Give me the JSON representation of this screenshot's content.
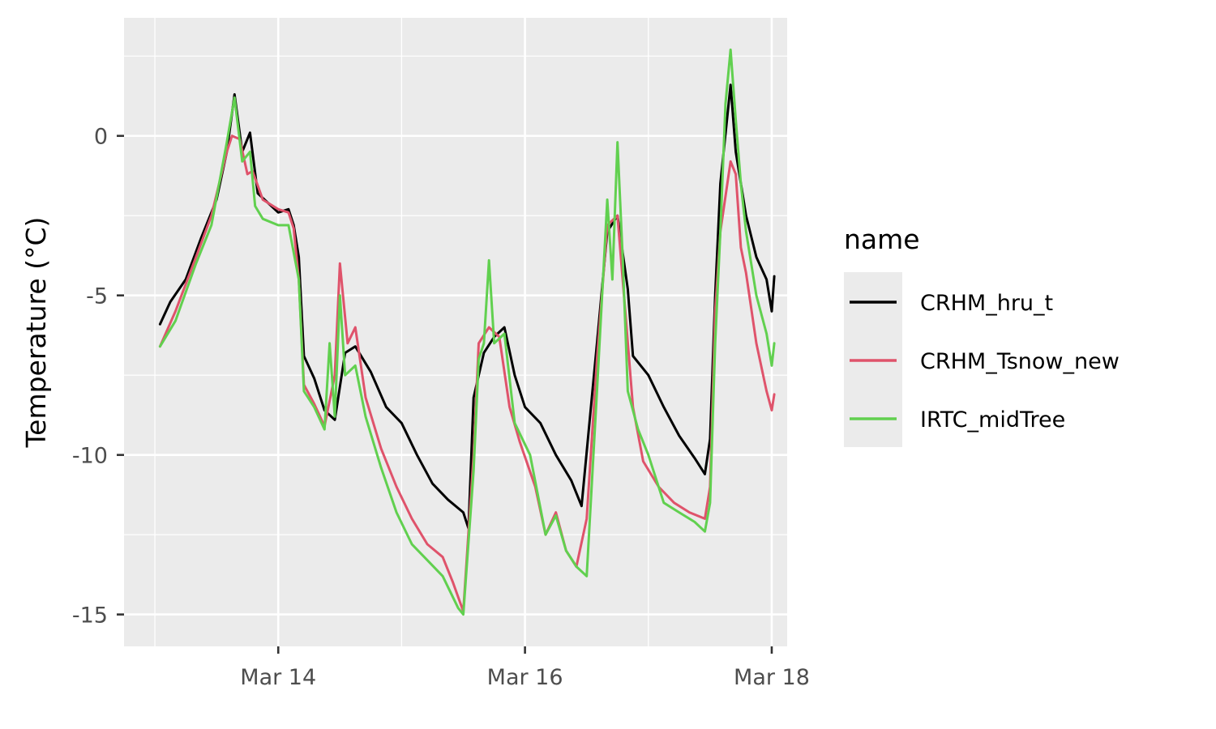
{
  "chart_data": {
    "type": "line",
    "title": "",
    "xlabel": "",
    "ylabel": "Temperature (°C)",
    "x_axis": {
      "type": "time",
      "range": [
        "2023-03-12 18:00",
        "2023-03-18 03:00"
      ],
      "ticks": [
        {
          "value": "2023-03-14 00:00",
          "label": "Mar 14"
        },
        {
          "value": "2023-03-16 00:00",
          "label": "Mar 16"
        },
        {
          "value": "2023-03-18 00:00",
          "label": "Mar 18"
        }
      ],
      "minor_ticks": [
        "2023-03-13 00:00",
        "2023-03-15 00:00",
        "2023-03-17 00:00"
      ]
    },
    "y_axis": {
      "range": [
        -16,
        3.7
      ],
      "ticks": [
        0,
        -5,
        -10,
        -15
      ],
      "tick_labels": [
        "0",
        "-5",
        "-10",
        "-15"
      ],
      "minor_ticks": [
        2.5,
        -2.5,
        -7.5,
        -12.5
      ]
    },
    "grid": true,
    "background": "#ebebeb",
    "legend": {
      "title": "name",
      "position": "right"
    },
    "series": [
      {
        "name": "CRHM_hru_t",
        "color": "#000000",
        "points": [
          [
            "2023-03-13 01:00",
            -5.9
          ],
          [
            "2023-03-13 03:00",
            -5.2
          ],
          [
            "2023-03-13 06:00",
            -4.5
          ],
          [
            "2023-03-13 09:00",
            -3.2
          ],
          [
            "2023-03-13 12:00",
            -2.0
          ],
          [
            "2023-03-13 14:00",
            -0.5
          ],
          [
            "2023-03-13 15:30",
            1.3
          ],
          [
            "2023-03-13 17:00",
            -0.5
          ],
          [
            "2023-03-13 18:30",
            0.1
          ],
          [
            "2023-03-13 20:00",
            -1.8
          ],
          [
            "2023-03-13 22:00",
            -2.1
          ],
          [
            "2023-03-14 00:00",
            -2.4
          ],
          [
            "2023-03-14 02:00",
            -2.3
          ],
          [
            "2023-03-14 03:00",
            -2.8
          ],
          [
            "2023-03-14 04:00",
            -3.8
          ],
          [
            "2023-03-14 05:00",
            -6.9
          ],
          [
            "2023-03-14 07:00",
            -7.6
          ],
          [
            "2023-03-14 09:00",
            -8.6
          ],
          [
            "2023-03-14 11:00",
            -8.9
          ],
          [
            "2023-03-14 13:00",
            -6.8
          ],
          [
            "2023-03-14 15:00",
            -6.6
          ],
          [
            "2023-03-14 18:00",
            -7.4
          ],
          [
            "2023-03-14 21:00",
            -8.5
          ],
          [
            "2023-03-15 00:00",
            -9.0
          ],
          [
            "2023-03-15 03:00",
            -10.0
          ],
          [
            "2023-03-15 06:00",
            -10.9
          ],
          [
            "2023-03-15 09:00",
            -11.4
          ],
          [
            "2023-03-15 12:00",
            -11.8
          ],
          [
            "2023-03-15 13:00",
            -12.3
          ],
          [
            "2023-03-15 14:00",
            -8.2
          ],
          [
            "2023-03-15 16:00",
            -6.8
          ],
          [
            "2023-03-15 18:00",
            -6.3
          ],
          [
            "2023-03-15 20:00",
            -6.0
          ],
          [
            "2023-03-15 22:00",
            -7.5
          ],
          [
            "2023-03-16 00:00",
            -8.5
          ],
          [
            "2023-03-16 03:00",
            -9.0
          ],
          [
            "2023-03-16 06:00",
            -10.0
          ],
          [
            "2023-03-16 09:00",
            -10.8
          ],
          [
            "2023-03-16 11:00",
            -11.6
          ],
          [
            "2023-03-16 14:00",
            -6.5
          ],
          [
            "2023-03-16 16:00",
            -3.0
          ],
          [
            "2023-03-16 18:00",
            -2.5
          ],
          [
            "2023-03-16 20:00",
            -4.8
          ],
          [
            "2023-03-16 21:00",
            -6.9
          ],
          [
            "2023-03-17 00:00",
            -7.5
          ],
          [
            "2023-03-17 03:00",
            -8.5
          ],
          [
            "2023-03-17 06:00",
            -9.4
          ],
          [
            "2023-03-17 09:00",
            -10.1
          ],
          [
            "2023-03-17 11:00",
            -10.6
          ],
          [
            "2023-03-17 12:00",
            -9.5
          ],
          [
            "2023-03-17 13:00",
            -5.0
          ],
          [
            "2023-03-17 14:00",
            -1.5
          ],
          [
            "2023-03-17 16:00",
            1.6
          ],
          [
            "2023-03-17 17:00",
            -0.5
          ],
          [
            "2023-03-17 19:00",
            -2.5
          ],
          [
            "2023-03-17 21:00",
            -3.8
          ],
          [
            "2023-03-17 23:00",
            -4.5
          ],
          [
            "2023-03-18 00:00",
            -5.5
          ],
          [
            "2023-03-18 00:30",
            -4.4
          ]
        ]
      },
      {
        "name": "CRHM_Tsnow_new",
        "color": "#df536b",
        "points": [
          [
            "2023-03-13 01:00",
            -6.6
          ],
          [
            "2023-03-13 04:00",
            -5.5
          ],
          [
            "2023-03-13 08:00",
            -3.8
          ],
          [
            "2023-03-13 11:00",
            -2.5
          ],
          [
            "2023-03-13 14:00",
            -0.5
          ],
          [
            "2023-03-13 15:00",
            0.0
          ],
          [
            "2023-03-13 16:30",
            -0.1
          ],
          [
            "2023-03-13 18:00",
            -1.2
          ],
          [
            "2023-03-13 19:00",
            -1.1
          ],
          [
            "2023-03-13 21:00",
            -2.0
          ],
          [
            "2023-03-14 00:00",
            -2.3
          ],
          [
            "2023-03-14 02:00",
            -2.4
          ],
          [
            "2023-03-14 03:00",
            -2.9
          ],
          [
            "2023-03-14 04:00",
            -4.5
          ],
          [
            "2023-03-14 05:00",
            -7.8
          ],
          [
            "2023-03-14 07:00",
            -8.4
          ],
          [
            "2023-03-14 09:00",
            -9.1
          ],
          [
            "2023-03-14 11:00",
            -7.5
          ],
          [
            "2023-03-14 12:00",
            -4.0
          ],
          [
            "2023-03-14 13:30",
            -6.5
          ],
          [
            "2023-03-14 15:00",
            -6.0
          ],
          [
            "2023-03-14 17:00",
            -8.2
          ],
          [
            "2023-03-14 20:00",
            -9.8
          ],
          [
            "2023-03-14 23:00",
            -11.0
          ],
          [
            "2023-03-15 02:00",
            -12.0
          ],
          [
            "2023-03-15 05:00",
            -12.8
          ],
          [
            "2023-03-15 08:00",
            -13.2
          ],
          [
            "2023-03-15 10:00",
            -14.0
          ],
          [
            "2023-03-15 12:00",
            -14.9
          ],
          [
            "2023-03-15 14:00",
            -10.0
          ],
          [
            "2023-03-15 15:00",
            -6.5
          ],
          [
            "2023-03-15 17:00",
            -6.0
          ],
          [
            "2023-03-15 19:00",
            -6.3
          ],
          [
            "2023-03-15 21:00",
            -8.5
          ],
          [
            "2023-03-15 23:00",
            -9.6
          ],
          [
            "2023-03-16 02:00",
            -11.0
          ],
          [
            "2023-03-16 04:00",
            -12.5
          ],
          [
            "2023-03-16 06:00",
            -11.8
          ],
          [
            "2023-03-16 08:00",
            -13.0
          ],
          [
            "2023-03-16 10:00",
            -13.5
          ],
          [
            "2023-03-16 12:00",
            -12.0
          ],
          [
            "2023-03-16 14:00",
            -7.0
          ],
          [
            "2023-03-16 16:00",
            -2.8
          ],
          [
            "2023-03-16 18:00",
            -2.5
          ],
          [
            "2023-03-16 19:30",
            -5.5
          ],
          [
            "2023-03-16 21:00",
            -8.5
          ],
          [
            "2023-03-16 23:00",
            -10.2
          ],
          [
            "2023-03-17 02:00",
            -11.0
          ],
          [
            "2023-03-17 05:00",
            -11.5
          ],
          [
            "2023-03-17 08:00",
            -11.8
          ],
          [
            "2023-03-17 11:00",
            -12.0
          ],
          [
            "2023-03-17 12:00",
            -11.0
          ],
          [
            "2023-03-17 13:00",
            -5.5
          ],
          [
            "2023-03-17 14:00",
            -3.0
          ],
          [
            "2023-03-17 16:00",
            -0.8
          ],
          [
            "2023-03-17 17:00",
            -1.2
          ],
          [
            "2023-03-17 18:00",
            -3.5
          ],
          [
            "2023-03-17 19:00",
            -4.3
          ],
          [
            "2023-03-17 21:00",
            -6.5
          ],
          [
            "2023-03-17 23:00",
            -8.0
          ],
          [
            "2023-03-18 00:00",
            -8.6
          ],
          [
            "2023-03-18 00:30",
            -8.1
          ]
        ]
      },
      {
        "name": "IRTC_midTree",
        "color": "#61d04f",
        "points": [
          [
            "2023-03-13 01:00",
            -6.6
          ],
          [
            "2023-03-13 04:00",
            -5.8
          ],
          [
            "2023-03-13 08:00",
            -4.0
          ],
          [
            "2023-03-13 11:00",
            -2.8
          ],
          [
            "2023-03-13 14:00",
            -0.2
          ],
          [
            "2023-03-13 15:30",
            1.2
          ],
          [
            "2023-03-13 17:00",
            -0.8
          ],
          [
            "2023-03-13 18:30",
            -0.5
          ],
          [
            "2023-03-13 19:30",
            -2.2
          ],
          [
            "2023-03-13 21:00",
            -2.6
          ],
          [
            "2023-03-14 00:00",
            -2.8
          ],
          [
            "2023-03-14 02:00",
            -2.8
          ],
          [
            "2023-03-14 04:00",
            -4.5
          ],
          [
            "2023-03-14 05:00",
            -8.0
          ],
          [
            "2023-03-14 07:00",
            -8.5
          ],
          [
            "2023-03-14 09:00",
            -9.2
          ],
          [
            "2023-03-14 10:00",
            -6.5
          ],
          [
            "2023-03-14 11:00",
            -8.8
          ],
          [
            "2023-03-14 12:00",
            -5.0
          ],
          [
            "2023-03-14 13:00",
            -7.5
          ],
          [
            "2023-03-14 15:00",
            -7.2
          ],
          [
            "2023-03-14 17:00",
            -8.8
          ],
          [
            "2023-03-14 20:00",
            -10.4
          ],
          [
            "2023-03-14 23:00",
            -11.8
          ],
          [
            "2023-03-15 02:00",
            -12.8
          ],
          [
            "2023-03-15 05:00",
            -13.3
          ],
          [
            "2023-03-15 08:00",
            -13.8
          ],
          [
            "2023-03-15 11:00",
            -14.8
          ],
          [
            "2023-03-15 12:00",
            -15.0
          ],
          [
            "2023-03-15 14:00",
            -10.5
          ],
          [
            "2023-03-15 15:00",
            -7.0
          ],
          [
            "2023-03-15 16:00",
            -6.5
          ],
          [
            "2023-03-15 17:00",
            -3.9
          ],
          [
            "2023-03-15 18:00",
            -6.5
          ],
          [
            "2023-03-15 20:00",
            -6.2
          ],
          [
            "2023-03-15 22:00",
            -9.0
          ],
          [
            "2023-03-16 01:00",
            -10.0
          ],
          [
            "2023-03-16 04:00",
            -12.5
          ],
          [
            "2023-03-16 06:00",
            -11.9
          ],
          [
            "2023-03-16 08:00",
            -13.0
          ],
          [
            "2023-03-16 10:00",
            -13.5
          ],
          [
            "2023-03-16 12:00",
            -13.8
          ],
          [
            "2023-03-16 14:00",
            -8.0
          ],
          [
            "2023-03-16 16:00",
            -2.0
          ],
          [
            "2023-03-16 17:00",
            -4.5
          ],
          [
            "2023-03-16 18:00",
            -0.2
          ],
          [
            "2023-03-16 19:00",
            -3.8
          ],
          [
            "2023-03-16 20:00",
            -8.0
          ],
          [
            "2023-03-16 22:00",
            -9.2
          ],
          [
            "2023-03-17 00:00",
            -10.0
          ],
          [
            "2023-03-17 03:00",
            -11.5
          ],
          [
            "2023-03-17 06:00",
            -11.8
          ],
          [
            "2023-03-17 09:00",
            -12.1
          ],
          [
            "2023-03-17 11:00",
            -12.4
          ],
          [
            "2023-03-17 12:00",
            -11.5
          ],
          [
            "2023-03-17 13:00",
            -6.5
          ],
          [
            "2023-03-17 14:00",
            -3.0
          ],
          [
            "2023-03-17 15:00",
            1.0
          ],
          [
            "2023-03-17 16:00",
            2.7
          ],
          [
            "2023-03-17 17:00",
            0.5
          ],
          [
            "2023-03-17 18:00",
            -1.5
          ],
          [
            "2023-03-17 19:00",
            -3.0
          ],
          [
            "2023-03-17 21:00",
            -5.0
          ],
          [
            "2023-03-17 23:00",
            -6.2
          ],
          [
            "2023-03-18 00:00",
            -7.2
          ],
          [
            "2023-03-18 00:30",
            -6.5
          ]
        ]
      }
    ]
  }
}
